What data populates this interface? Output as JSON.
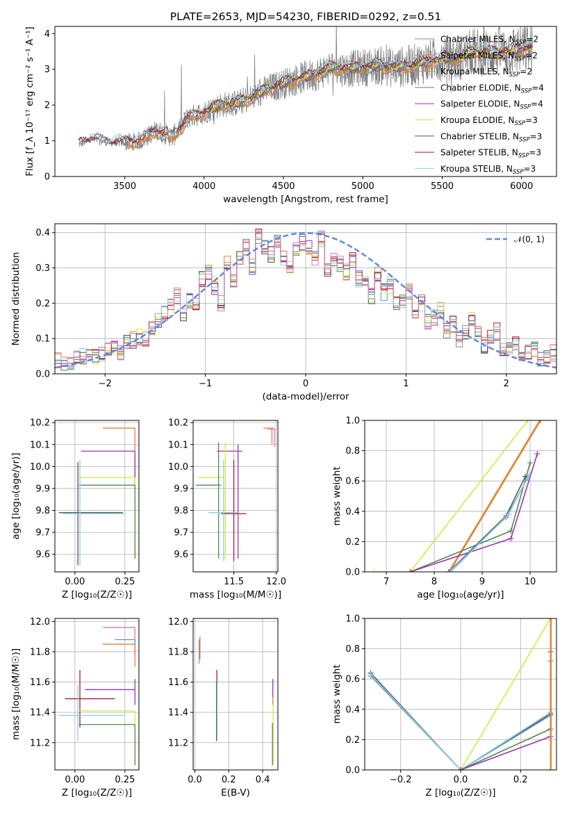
{
  "figure_title": "PLATE=2653, MJD=54230, FIBERID=0292, z=0.51",
  "colors": {
    "chabrier_miles": "#6c8ebf",
    "salpeter_miles": "#f27c3a",
    "kroupa_miles": "#d98a2b",
    "chabrier_elodie": "#4f8a4f",
    "salpeter_elodie": "#9b33b5",
    "kroupa_elodie": "#d4ec3a",
    "chabrier_stelib": "#555555",
    "salpeter_stelib": "#b0182b",
    "kroupa_stelib": "#88d0e0",
    "gaussian": "#5b8bd6",
    "hist_pink": "#e577b0",
    "spectrum_grey": "#7f7f7f"
  },
  "chart_data": [
    {
      "id": "spectrum",
      "type": "line",
      "xlabel": "wavelength [Angstrom, rest frame]",
      "ylabel": "Flux [f_λ 10⁻¹⁷ erg cm⁻² s⁻¹ A⁻¹]",
      "xlim": [
        3060,
        6220
      ],
      "ylim": [
        0,
        4.2
      ],
      "xticks": [
        "3500",
        "4000",
        "4500",
        "5000",
        "5500",
        "6000"
      ],
      "xtick_values": [
        3500,
        4000,
        4500,
        5000,
        5500,
        6000
      ],
      "yticks": [
        "0",
        "1",
        "2",
        "3",
        "4"
      ],
      "ytick_values": [
        0,
        1,
        2,
        3,
        4
      ],
      "grid": false,
      "legend_position": "lower-right",
      "legend": [
        {
          "model": "Chabrier MILES",
          "n": "2",
          "color_key": "chabrier_miles"
        },
        {
          "model": "Salpeter MILES",
          "n": "2",
          "color_key": "salpeter_miles"
        },
        {
          "model": "Kroupa MILES",
          "n": "2",
          "color_key": "kroupa_miles"
        },
        {
          "model": "Chabrier ELODIE",
          "n": "4",
          "color_key": "chabrier_elodie"
        },
        {
          "model": "Salpeter ELODIE",
          "n": "4",
          "color_key": "salpeter_elodie"
        },
        {
          "model": "Kroupa ELODIE",
          "n": "3",
          "color_key": "kroupa_elodie"
        },
        {
          "model": "Chabrier STELIB",
          "n": "3",
          "color_key": "chabrier_stelib"
        },
        {
          "model": "Salpeter STELIB",
          "n": "3",
          "color_key": "salpeter_stelib"
        },
        {
          "model": "Kroupa STELIB",
          "n": "3",
          "color_key": "kroupa_stelib"
        }
      ],
      "data_range": [
        3210,
        6070
      ],
      "model_envelope": {
        "x": [
          3210,
          3300,
          3400,
          3500,
          3600,
          3700,
          3800,
          3900,
          4000,
          4100,
          4200,
          4300,
          4400,
          4500,
          4600,
          4700,
          4800,
          4900,
          5000,
          5100,
          5200,
          5300,
          5400,
          5500,
          5600,
          5700,
          5800,
          5900,
          6000,
          6070
        ],
        "y": [
          0.9,
          1.05,
          0.95,
          0.95,
          1.0,
          1.3,
          1.1,
          1.65,
          1.8,
          2.0,
          2.05,
          2.2,
          2.45,
          2.6,
          2.75,
          2.85,
          3.05,
          3.0,
          3.05,
          3.1,
          3.05,
          3.1,
          3.2,
          3.3,
          3.3,
          3.5,
          3.45,
          3.5,
          3.55,
          3.6
        ]
      }
    },
    {
      "id": "residuals",
      "type": "bar",
      "xlabel": "(data-model)/error",
      "ylabel": "Normed distribution",
      "xlim": [
        -2.5,
        2.5
      ],
      "ylim": [
        0,
        0.425
      ],
      "xticks": [
        "−2",
        "−1",
        "0",
        "1",
        "2"
      ],
      "xtick_values": [
        -2,
        -1,
        0,
        1,
        2
      ],
      "yticks": [
        "0.0",
        "0.1",
        "0.2",
        "0.3",
        "0.4"
      ],
      "ytick_values": [
        0,
        0.1,
        0.2,
        0.3,
        0.4
      ],
      "grid": true,
      "legend_position": "upper-right",
      "legend": [
        {
          "label": "𝒩(0, 1)",
          "color_key": "gaussian"
        }
      ],
      "bin_start": -2.5,
      "bin_width": 0.1,
      "base_values": [
        0.04,
        0.03,
        0.035,
        0.045,
        0.05,
        0.055,
        0.05,
        0.06,
        0.065,
        0.08,
        0.06,
        0.085,
        0.095,
        0.105,
        0.1,
        0.13,
        0.155,
        0.17,
        0.19,
        0.22,
        0.16,
        0.21,
        0.19,
        0.27,
        0.29,
        0.25,
        0.2,
        0.31,
        0.26,
        0.33,
        0.36,
        0.3,
        0.39,
        0.36,
        0.34,
        0.38,
        0.33,
        0.31,
        0.35,
        0.37,
        0.36,
        0.33,
        0.38,
        0.3,
        0.33,
        0.31,
        0.29,
        0.32,
        0.27,
        0.26,
        0.22,
        0.28,
        0.23,
        0.25,
        0.2,
        0.21,
        0.23,
        0.17,
        0.2,
        0.15,
        0.16,
        0.18,
        0.12,
        0.14,
        0.1,
        0.12,
        0.15,
        0.13,
        0.08,
        0.1,
        0.12,
        0.07,
        0.08,
        0.09,
        0.05,
        0.06,
        0.07,
        0.04,
        0.05,
        0.06
      ],
      "hist_color_keys": [
        "chabrier_miles",
        "salpeter_miles",
        "chabrier_elodie",
        "salpeter_elodie",
        "kroupa_elodie",
        "chabrier_stelib",
        "salpeter_stelib",
        "kroupa_stelib",
        "hist_pink"
      ]
    },
    {
      "id": "age_vs_Z",
      "type": "scatter",
      "xlabel": "Z [log₁₀(Z/Z☉)]",
      "ylabel": "age  [log₁₀(age/yr)]",
      "xlim": [
        -0.1,
        0.32
      ],
      "ylim": [
        9.52,
        10.21
      ],
      "xticks": [
        "0.00",
        "0.25"
      ],
      "xtick_values": [
        0,
        0.25
      ],
      "yticks": [
        "9.6",
        "9.7",
        "9.8",
        "9.9",
        "10.0",
        "10.1",
        "10.2"
      ],
      "ytick_values": [
        9.6,
        9.7,
        9.8,
        9.9,
        10.0,
        10.1,
        10.2
      ],
      "grid": true,
      "crosses": [
        {
          "color_key": "salpeter_miles",
          "x": [
            0.14,
            0.3
          ],
          "y": [
            10.175,
            10.175
          ],
          "vx": 0.3,
          "vy": [
            9.58,
            10.175
          ]
        },
        {
          "color_key": "salpeter_elodie",
          "x": [
            0.03,
            0.3
          ],
          "y": [
            10.07,
            10.07
          ],
          "vx": 0.3,
          "vy": [
            9.9,
            10.07
          ]
        },
        {
          "color_key": "kroupa_elodie",
          "x": [
            0.02,
            0.3
          ],
          "y": [
            9.95,
            9.95
          ],
          "vx": 0.3,
          "vy": [
            9.58,
            9.95
          ]
        },
        {
          "color_key": "chabrier_elodie",
          "x": [
            0.02,
            0.3
          ],
          "y": [
            9.915,
            9.915
          ],
          "vx": 0.3,
          "vy": [
            9.58,
            9.915
          ]
        },
        {
          "color_key": "chabrier_stelib",
          "x": [
            -0.08,
            0.24
          ],
          "y": [
            9.79,
            9.79
          ],
          "vx": 0.015,
          "vy": [
            9.55,
            10.02
          ]
        },
        {
          "color_key": "kroupa_stelib",
          "x": [
            -0.06,
            0.25
          ],
          "y": [
            9.785,
            9.785
          ],
          "vx": 0.025,
          "vy": [
            9.55,
            10.03
          ]
        }
      ]
    },
    {
      "id": "age_vs_mass",
      "type": "scatter",
      "xlabel": "mass [log₁₀(M/M☉)]",
      "ylabel": "",
      "xlim": [
        11.02,
        12.02
      ],
      "ylim": [
        9.52,
        10.21
      ],
      "xticks": [
        "11.5",
        "12.0"
      ],
      "xtick_values": [
        11.5,
        12.0
      ],
      "yticks": [
        "9.6",
        "9.7",
        "9.8",
        "9.9",
        "10.0",
        "10.1",
        "10.2"
      ],
      "ytick_values": [
        9.6,
        9.7,
        9.8,
        9.9,
        10.0,
        10.1,
        10.2
      ],
      "grid": true,
      "crosses": [
        {
          "color_key": "salpeter_miles",
          "x": [
            11.85,
            11.97
          ],
          "y": [
            10.175,
            10.175
          ],
          "vx": 11.95,
          "vy": [
            10.1,
            10.175
          ]
        },
        {
          "color_key": "hist_pink",
          "x": [
            11.9,
            12.0
          ],
          "y": [
            10.17,
            10.17
          ],
          "vx": 11.98,
          "vy": [
            10.09,
            10.17
          ]
        },
        {
          "color_key": "salpeter_elodie",
          "x": [
            11.3,
            11.6
          ],
          "y": [
            10.07,
            10.07
          ],
          "vx": 11.55,
          "vy": [
            9.58,
            10.1
          ]
        },
        {
          "color_key": "kroupa_elodie",
          "x": [
            11.08,
            11.38
          ],
          "y": [
            9.95,
            9.95
          ],
          "vx": 11.4,
          "vy": [
            9.58,
            10.11
          ]
        },
        {
          "color_key": "chabrier_elodie",
          "x": [
            11.05,
            11.35
          ],
          "y": [
            9.915,
            9.915
          ],
          "vx": 11.32,
          "vy": [
            9.58,
            10.11
          ]
        },
        {
          "color_key": "salpeter_stelib",
          "x": [
            11.35,
            11.65
          ],
          "y": [
            9.785,
            9.785
          ],
          "vx": 11.5,
          "vy": [
            9.57,
            10.03
          ]
        },
        {
          "color_key": "kroupa_stelib",
          "x": [
            11.2,
            11.55
          ],
          "y": [
            9.79,
            9.79
          ],
          "vx": 11.38,
          "vy": [
            9.57,
            10.03
          ]
        }
      ]
    },
    {
      "id": "massweight_vs_age",
      "type": "line",
      "xlabel": "age  [log₁₀(age/yr)]",
      "ylabel": "mass weight",
      "xlim": [
        6.55,
        10.55
      ],
      "ylim": [
        0,
        1
      ],
      "xticks": [
        "7",
        "8",
        "9",
        "10"
      ],
      "xtick_values": [
        7,
        8,
        9,
        10
      ],
      "yticks": [
        "0.0",
        "0.2",
        "0.4",
        "0.6",
        "0.8",
        "1.0"
      ],
      "ytick_values": [
        0,
        0.2,
        0.4,
        0.6,
        0.8,
        1.0
      ],
      "grid": true,
      "series": [
        {
          "color_key": "kroupa_elodie",
          "x": [
            6.75,
            7.5,
            9.95
          ],
          "y": [
            0,
            0,
            1.0
          ]
        },
        {
          "color_key": "salpeter_miles",
          "x": [
            8.3,
            10.2
          ],
          "y": [
            0,
            1.0
          ]
        },
        {
          "color_key": "kroupa_miles",
          "x": [
            8.32,
            10.22
          ],
          "y": [
            0,
            1.0
          ]
        },
        {
          "color_key": "chabrier_elodie",
          "x": [
            7.5,
            9.6,
            10.0
          ],
          "y": [
            0,
            0.27,
            0.72
          ]
        },
        {
          "color_key": "salpeter_elodie",
          "x": [
            7.5,
            9.6,
            10.15
          ],
          "y": [
            0,
            0.22,
            0.78
          ]
        },
        {
          "color_key": "chabrier_stelib",
          "x": [
            8.3,
            9.5,
            9.9
          ],
          "y": [
            0,
            0.37,
            0.63
          ]
        },
        {
          "color_key": "chabrier_miles",
          "x": [
            8.3,
            9.5,
            9.95
          ],
          "y": [
            0,
            0.36,
            0.62
          ]
        },
        {
          "color_key": "kroupa_stelib",
          "x": [
            8.35,
            9.55,
            9.98
          ],
          "y": [
            0,
            0.38,
            0.64
          ]
        }
      ]
    },
    {
      "id": "mass_vs_Z",
      "type": "scatter",
      "xlabel": "Z [log₁₀(Z/Z☉)]",
      "ylabel": "mass [log₁₀(M/M☉)]",
      "xlim": [
        -0.1,
        0.32
      ],
      "ylim": [
        11.02,
        12.02
      ],
      "xticks": [
        "0.00",
        "0.25"
      ],
      "xtick_values": [
        0,
        0.25
      ],
      "yticks": [
        "11.2",
        "11.4",
        "11.6",
        "11.8",
        "12.0"
      ],
      "ytick_values": [
        11.2,
        11.4,
        11.6,
        11.8,
        12.0
      ],
      "grid": true,
      "crosses": [
        {
          "color_key": "hist_pink",
          "x": [
            0.14,
            0.3
          ],
          "y": [
            11.96,
            11.96
          ],
          "vx": 0.3,
          "vy": [
            11.78,
            11.96
          ]
        },
        {
          "color_key": "chabrier_miles",
          "x": [
            0.2,
            0.3
          ],
          "y": [
            11.88,
            11.88
          ],
          "vx": 0.3,
          "vy": [
            11.8,
            11.88
          ]
        },
        {
          "color_key": "salpeter_miles",
          "x": [
            0.14,
            0.3
          ],
          "y": [
            11.85,
            11.85
          ],
          "vx": 0.3,
          "vy": [
            11.7,
            11.85
          ]
        },
        {
          "color_key": "salpeter_elodie",
          "x": [
            0.05,
            0.3
          ],
          "y": [
            11.55,
            11.55
          ],
          "vx": 0.3,
          "vy": [
            11.45,
            11.62
          ]
        },
        {
          "color_key": "salpeter_stelib",
          "x": [
            -0.05,
            0.2
          ],
          "y": [
            11.49,
            11.49
          ],
          "vx": 0.025,
          "vy": [
            11.3,
            11.68
          ]
        },
        {
          "color_key": "kroupa_elodie",
          "x": [
            0.02,
            0.3
          ],
          "y": [
            11.41,
            11.41
          ],
          "vx": 0.3,
          "vy": [
            11.06,
            11.41
          ]
        },
        {
          "color_key": "kroupa_stelib",
          "x": [
            -0.08,
            0.25
          ],
          "y": [
            11.38,
            11.38
          ],
          "vx": 0.015,
          "vy": [
            11.21,
            11.58
          ]
        },
        {
          "color_key": "chabrier_elodie",
          "x": [
            0.02,
            0.3
          ],
          "y": [
            11.32,
            11.32
          ],
          "vx": 0.3,
          "vy": [
            11.05,
            11.32
          ]
        }
      ]
    },
    {
      "id": "mass_vs_ebv",
      "type": "scatter",
      "xlabel": "E(B-V)",
      "ylabel": "",
      "xlim": [
        -0.01,
        0.49
      ],
      "ylim": [
        11.02,
        12.02
      ],
      "xticks": [
        "0.0",
        "0.2",
        "0.4"
      ],
      "xtick_values": [
        0,
        0.2,
        0.4
      ],
      "yticks": [
        "11.2",
        "11.4",
        "11.6",
        "11.8",
        "12.0"
      ],
      "ytick_values": [
        11.2,
        11.4,
        11.6,
        11.8,
        12.0
      ],
      "grid": true,
      "vlines": [
        {
          "color_key": "salpeter_miles",
          "x": 0.025,
          "y": [
            11.72,
            11.88
          ]
        },
        {
          "color_key": "chabrier_miles",
          "x": 0.03,
          "y": [
            11.75,
            11.9
          ]
        },
        {
          "color_key": "salpeter_stelib",
          "x": 0.13,
          "y": [
            11.3,
            11.68
          ]
        },
        {
          "color_key": "chabrier_stelib",
          "x": 0.128,
          "y": [
            11.21,
            11.6
          ]
        },
        {
          "color_key": "kroupa_stelib",
          "x": 0.132,
          "y": [
            11.22,
            11.6
          ]
        },
        {
          "color_key": "salpeter_elodie",
          "x": 0.46,
          "y": [
            11.45,
            11.62
          ]
        },
        {
          "color_key": "kroupa_elodie",
          "x": 0.462,
          "y": [
            11.06,
            11.5
          ]
        },
        {
          "color_key": "chabrier_elodie",
          "x": 0.458,
          "y": [
            11.05,
            11.33
          ]
        }
      ]
    },
    {
      "id": "massweight_vs_Z",
      "type": "line",
      "xlabel": "Z [log₁₀(Z/Z☉)]",
      "ylabel": "mass weight",
      "xlim": [
        -0.32,
        0.32
      ],
      "ylim": [
        0,
        1
      ],
      "xticks": [
        "−0.2",
        "0.0",
        "0.2"
      ],
      "xtick_values": [
        -0.2,
        0,
        0.2
      ],
      "yticks": [
        "0.0",
        "0.2",
        "0.4",
        "0.6",
        "0.8",
        "1.0"
      ],
      "ytick_values": [
        0,
        0.2,
        0.4,
        0.6,
        0.8,
        1.0
      ],
      "grid": true,
      "series": [
        {
          "color_key": "chabrier_stelib",
          "x": [
            -0.3,
            0.0,
            0.3
          ],
          "y": [
            0.64,
            0,
            0.37
          ]
        },
        {
          "color_key": "chabrier_miles",
          "x": [
            -0.3,
            0.0,
            0.3
          ],
          "y": [
            0.62,
            0,
            0.36
          ]
        },
        {
          "color_key": "kroupa_stelib",
          "x": [
            -0.3,
            0.0,
            0.3
          ],
          "y": [
            0.63,
            0,
            0.38
          ]
        },
        {
          "color_key": "kroupa_elodie",
          "x": [
            0.0,
            0.3
          ],
          "y": [
            0,
            1.0
          ]
        },
        {
          "color_key": "chabrier_elodie",
          "x": [
            0.0,
            0.3,
            0.3
          ],
          "y": [
            0,
            0.27,
            0.72
          ]
        },
        {
          "color_key": "salpeter_elodie",
          "x": [
            0.0,
            0.3,
            0.3
          ],
          "y": [
            0,
            0.22,
            0.78
          ]
        },
        {
          "color_key": "salpeter_miles",
          "x": [
            0.3,
            0.3
          ],
          "y": [
            0,
            1.0
          ]
        },
        {
          "color_key": "kroupa_miles",
          "x": [
            0.302,
            0.302
          ],
          "y": [
            0,
            1.0
          ]
        }
      ]
    }
  ]
}
